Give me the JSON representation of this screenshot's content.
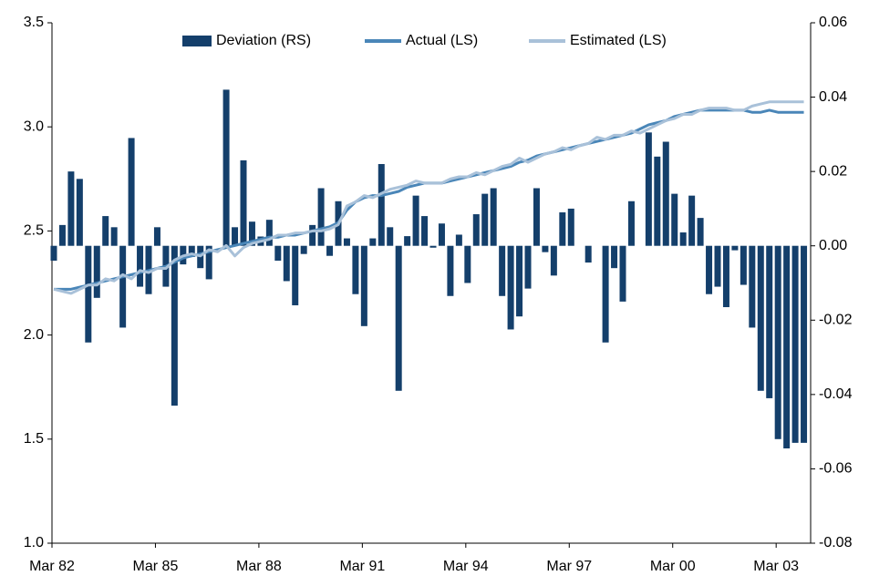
{
  "chart_data": {
    "type": "bar",
    "categories": [
      "Mar 82",
      null,
      null,
      null,
      null,
      null,
      null,
      null,
      null,
      null,
      null,
      null,
      "Mar 85",
      null,
      null,
      null,
      null,
      null,
      null,
      null,
      null,
      null,
      null,
      null,
      "Mar 88",
      null,
      null,
      null,
      null,
      null,
      null,
      null,
      null,
      null,
      null,
      null,
      "Mar 91",
      null,
      null,
      null,
      null,
      null,
      null,
      null,
      null,
      null,
      null,
      null,
      "Mar 94",
      null,
      null,
      null,
      null,
      null,
      null,
      null,
      null,
      null,
      null,
      null,
      "Mar 97",
      null,
      null,
      null,
      null,
      null,
      null,
      null,
      null,
      null,
      null,
      null,
      "Mar 00",
      null,
      null,
      null,
      null,
      null,
      null,
      null,
      null,
      null,
      null,
      null,
      "Mar 03",
      null,
      null,
      null
    ],
    "series": [
      {
        "name": "Deviation (RS)",
        "type": "bar",
        "axis": "y2",
        "color": "#143f6b",
        "values": [
          -0.004,
          0.0056,
          0.02,
          0.018,
          -0.026,
          -0.014,
          0.008,
          0.005,
          -0.022,
          0.029,
          -0.011,
          -0.013,
          0.005,
          -0.011,
          -0.043,
          -0.005,
          -0.003,
          -0.006,
          -0.009,
          0,
          0.042,
          0.005,
          0.023,
          0.0065,
          0.0025,
          0.007,
          -0.004,
          -0.0095,
          -0.016,
          -0.0022,
          0.0056,
          0.0155,
          -0.0027,
          0.012,
          0.002,
          -0.013,
          -0.0216,
          0.002,
          0.022,
          0.005,
          -0.039,
          0.0026,
          0.0135,
          0.008,
          -0.0005,
          0.006,
          -0.0135,
          0.003,
          -0.01,
          0.0085,
          0.014,
          0.0155,
          -0.0135,
          -0.0225,
          -0.019,
          -0.0115,
          0.0155,
          -0.0017,
          -0.008,
          0.009,
          0.01,
          0,
          -0.0045,
          0,
          -0.026,
          -0.006,
          -0.015,
          0.012,
          0,
          0.0305,
          0.024,
          0.028,
          0.014,
          0.0036,
          0.0135,
          0.0075,
          -0.013,
          -0.011,
          -0.0165,
          -0.0012,
          -0.0105,
          -0.022,
          -0.039,
          -0.041,
          -0.052,
          -0.0545,
          -0.053,
          -0.053
        ]
      },
      {
        "name": "Actual (LS)",
        "type": "line",
        "color": "#4a86b8",
        "values": [
          2.22,
          2.22,
          2.22,
          2.23,
          2.24,
          2.25,
          2.26,
          2.27,
          2.28,
          2.29,
          2.3,
          2.31,
          2.32,
          2.33,
          2.35,
          2.37,
          2.38,
          2.39,
          2.4,
          2.41,
          2.42,
          2.43,
          2.44,
          2.45,
          2.46,
          2.47,
          2.47,
          2.48,
          2.48,
          2.49,
          2.5,
          2.51,
          2.52,
          2.54,
          2.6,
          2.64,
          2.66,
          2.67,
          2.67,
          2.68,
          2.69,
          2.71,
          2.72,
          2.73,
          2.73,
          2.73,
          2.74,
          2.75,
          2.76,
          2.77,
          2.78,
          2.79,
          2.8,
          2.81,
          2.83,
          2.84,
          2.86,
          2.87,
          2.88,
          2.89,
          2.9,
          2.91,
          2.92,
          2.93,
          2.94,
          2.95,
          2.96,
          2.97,
          2.99,
          3.01,
          3.02,
          3.03,
          3.05,
          3.06,
          3.07,
          3.08,
          3.08,
          3.08,
          3.08,
          3.08,
          3.08,
          3.07,
          3.07,
          3.08,
          3.07,
          3.07,
          3.07,
          3.07
        ]
      },
      {
        "name": "Estimated (LS)",
        "type": "line",
        "color": "#a9c1d9",
        "values": [
          2.22,
          2.21,
          2.2,
          2.22,
          2.24,
          2.24,
          2.27,
          2.26,
          2.29,
          2.27,
          2.31,
          2.3,
          2.32,
          2.32,
          2.36,
          2.38,
          2.39,
          2.38,
          2.41,
          2.4,
          2.43,
          2.38,
          2.42,
          2.44,
          2.45,
          2.46,
          2.48,
          2.48,
          2.49,
          2.49,
          2.5,
          2.5,
          2.51,
          2.53,
          2.62,
          2.64,
          2.67,
          2.66,
          2.68,
          2.7,
          2.71,
          2.72,
          2.74,
          2.73,
          2.73,
          2.73,
          2.75,
          2.76,
          2.76,
          2.78,
          2.77,
          2.79,
          2.81,
          2.82,
          2.85,
          2.83,
          2.85,
          2.87,
          2.88,
          2.9,
          2.89,
          2.91,
          2.92,
          2.95,
          2.94,
          2.96,
          2.96,
          2.98,
          2.97,
          2.99,
          3.01,
          3.03,
          3.04,
          3.06,
          3.06,
          3.08,
          3.09,
          3.09,
          3.09,
          3.08,
          3.08,
          3.1,
          3.11,
          3.12,
          3.12,
          3.12,
          3.12,
          3.12
        ]
      }
    ],
    "ylim": [
      1.0,
      3.5
    ],
    "yticks": [
      {
        "value": 1,
        "label": "1.0"
      },
      1.5,
      {
        "value": 2,
        "label": "2.0"
      },
      2.5,
      {
        "value": 3,
        "label": "3.0"
      },
      3.5
    ],
    "y2lim": [
      -0.08,
      0.06
    ],
    "y2ticks": [
      -0.08,
      -0.06,
      -0.04,
      -0.02,
      {
        "value": 0,
        "label": "0.00"
      },
      0.02,
      0.04,
      0.06
    ],
    "legend": "top"
  }
}
